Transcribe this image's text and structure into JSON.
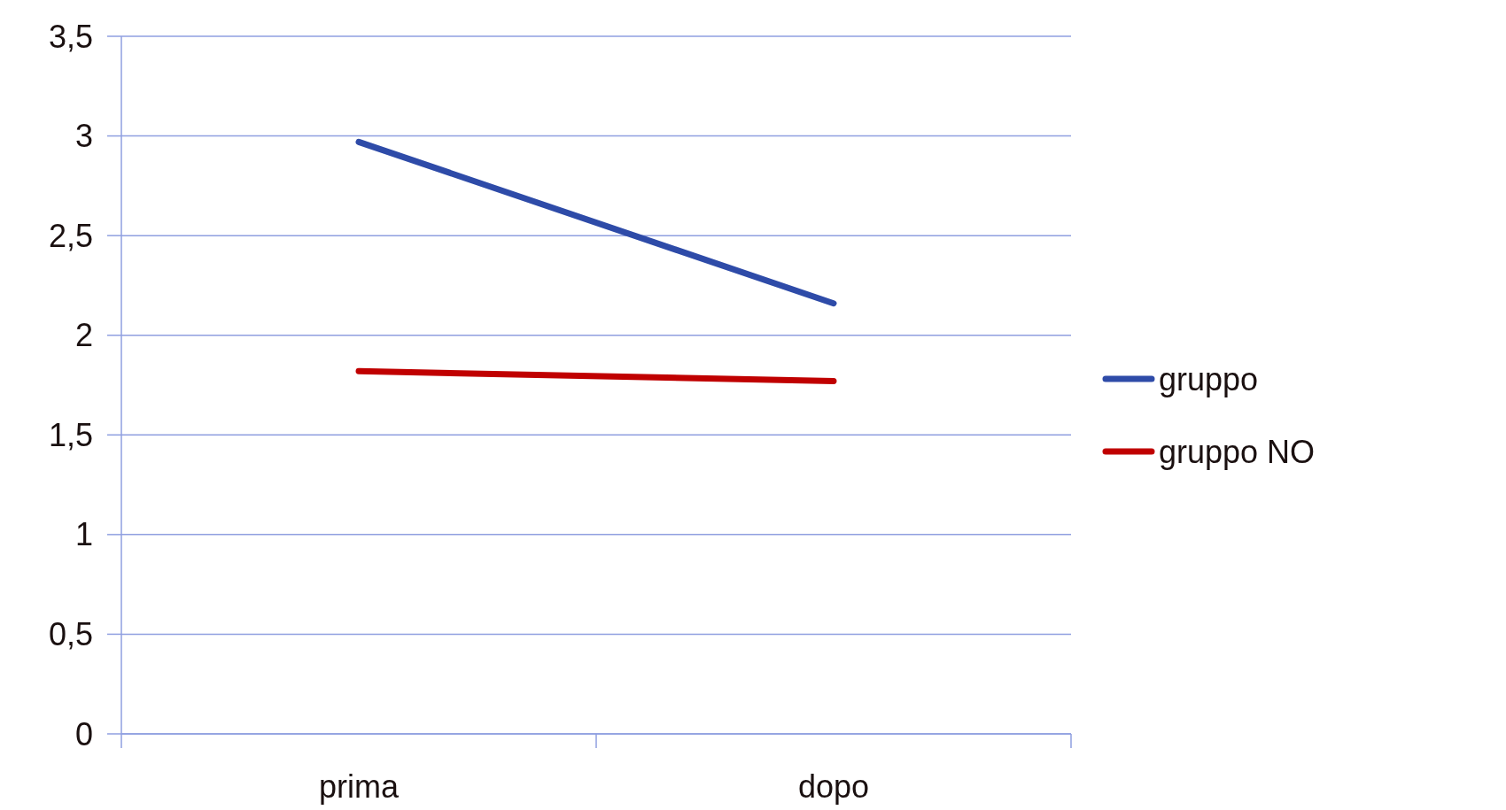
{
  "chart_data": {
    "type": "line",
    "categories": [
      "prima",
      "dopo"
    ],
    "series": [
      {
        "name": "gruppo",
        "color": "#2e4ba8",
        "values": [
          2.97,
          2.16
        ]
      },
      {
        "name": "gruppo NO",
        "color": "#c00000",
        "values": [
          1.82,
          1.77
        ]
      }
    ],
    "ylim": [
      0,
      3.5
    ],
    "yticks": [
      0,
      {
        "value": 0.5,
        "label": "0,5"
      },
      1,
      {
        "value": 1.5,
        "label": "1,5"
      },
      2,
      {
        "value": 2.5,
        "label": "2,5"
      },
      3,
      {
        "value": 3.5,
        "label": "3,5"
      }
    ],
    "grid": "y",
    "legend": "right",
    "marker": "none",
    "line_style": "solid"
  }
}
